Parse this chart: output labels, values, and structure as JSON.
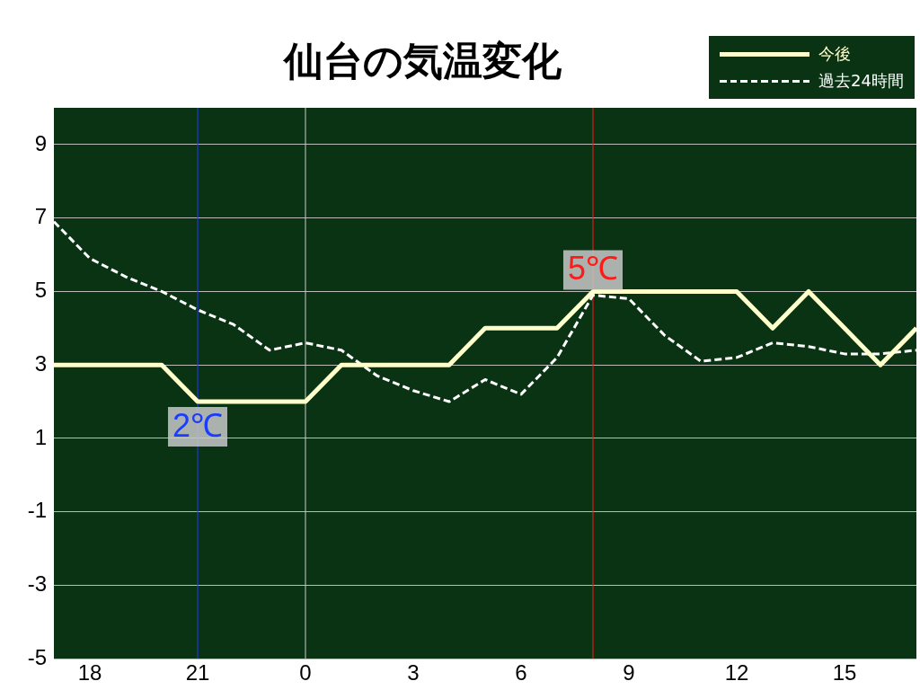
{
  "chart_data": {
    "type": "line",
    "title": "仙台の気温変化",
    "legend": "top right",
    "grid": "y",
    "marker": "none",
    "xlim": [
      "--01-01T17:00",
      "--01-02T17:00"
    ],
    "xticks": [
      {
        "value": "--01-01T18:00",
        "label": "18"
      },
      {
        "value": "--01-01T21:00",
        "label": "21"
      },
      {
        "value": "--01-02T00:00",
        "label": "0"
      },
      {
        "value": "--01-02T03:00",
        "label": "3"
      },
      {
        "value": "--01-02T06:00",
        "label": "6"
      },
      {
        "value": "--01-02T09:00",
        "label": "9"
      },
      {
        "value": "--01-02T12:00",
        "label": "12"
      },
      {
        "value": "--01-02T15:00",
        "label": "15"
      }
    ],
    "ylim": [
      -5,
      10
    ],
    "yticks": [
      -5,
      -3,
      -1,
      1,
      3,
      5,
      7,
      9
    ],
    "x": [
      "--01-01T17:00",
      "--01-01T18:00",
      "--01-01T19:00",
      "--01-01T20:00",
      "--01-01T21:00",
      "--01-01T22:00",
      "--01-01T23:00",
      "--01-02T00:00",
      "--01-02T01:00",
      "--01-02T02:00",
      "--01-02T03:00",
      "--01-02T04:00",
      "--01-02T05:00",
      "--01-02T06:00",
      "--01-02T07:00",
      "--01-02T08:00",
      "--01-02T09:00",
      "--01-02T10:00",
      "--01-02T11:00",
      "--01-02T12:00",
      "--01-02T13:00",
      "--01-02T14:00",
      "--01-02T15:00",
      "--01-02T16:00",
      "--01-02T17:00"
    ],
    "series": [
      {
        "name": "今後",
        "color": "#ffffcc",
        "line_style": "solid",
        "values": [
          3,
          3,
          3,
          3,
          2,
          2,
          2,
          2,
          3,
          3,
          3,
          3,
          4,
          4,
          4,
          5,
          5,
          5,
          5,
          5,
          4,
          5,
          4,
          3,
          4
        ]
      },
      {
        "name": "過去24時間",
        "color": "#ffffff",
        "line_style": "dashed",
        "values": [
          6.9,
          5.9,
          5.4,
          5.0,
          4.5,
          4.1,
          3.4,
          3.6,
          3.4,
          2.7,
          2.3,
          2.0,
          2.6,
          2.2,
          3.2,
          4.9,
          4.8,
          3.8,
          3.1,
          3.2,
          3.6,
          3.5,
          3.3,
          3.3,
          3.4
        ]
      }
    ],
    "ref_lines": [
      {
        "axis": "x",
        "value": "--01-02T00:00",
        "color": "#cccccc"
      },
      {
        "axis": "x",
        "value": "--01-01T21:00",
        "color": "#1a3cff"
      },
      {
        "axis": "x",
        "value": "--01-02T08:00",
        "color": "#ff1a1a"
      }
    ],
    "annotations": [
      {
        "text": "2℃",
        "x": "--01-01T21:00",
        "y": 2
      },
      {
        "text": "5℃",
        "x": "--01-02T08:00",
        "y": 5
      }
    ]
  }
}
